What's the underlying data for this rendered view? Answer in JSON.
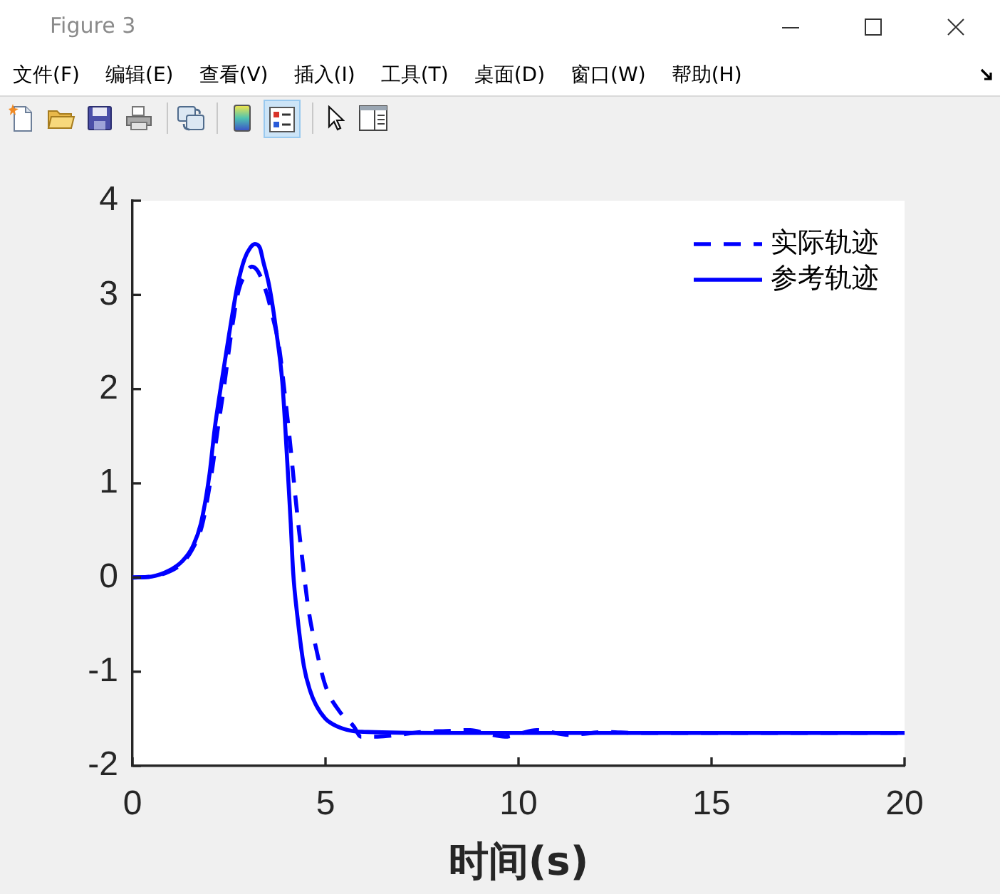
{
  "chart_data": {
    "type": "line",
    "xlabel": "时间(s)",
    "xlim": [
      0,
      20
    ],
    "xticks": [
      0,
      5,
      10,
      15,
      20
    ],
    "ylim": [
      -2,
      4
    ],
    "yticks": [
      -2,
      -1,
      0,
      1,
      2,
      3,
      4
    ],
    "legend": "top right",
    "annotations": [
      "Figure 3",
      "文件(F)",
      "编辑(E)",
      "查看(V)",
      "插入(I)",
      "工具(T)",
      "桌面(D)",
      "窗口(W)",
      "帮助(H)"
    ],
    "series": [
      {
        "name": "实际轨迹",
        "color": "#0000ff",
        "line_style": "dashed",
        "x": [
          0,
          0.5,
          0.93,
          1.28,
          1.55,
          1.8,
          2.04,
          2.2,
          2.39,
          2.56,
          2.75,
          2.9,
          3.09,
          3.25,
          3.45,
          3.62,
          3.8,
          3.95,
          4.07,
          4.23,
          4.35,
          4.56,
          4.75,
          5.0,
          5.36,
          5.73,
          5.92,
          6.35,
          6.9,
          7.5,
          8.13,
          8.75,
          9.2,
          9.65,
          10.0,
          10.47,
          11.3,
          12.3,
          13,
          15,
          17,
          20
        ],
        "values": [
          0,
          0.01,
          0.06,
          0.15,
          0.3,
          0.55,
          1.08,
          1.55,
          2.08,
          2.6,
          3.05,
          3.2,
          3.3,
          3.25,
          3.05,
          2.79,
          2.44,
          1.93,
          1.48,
          0.82,
          0.37,
          -0.34,
          -0.74,
          -1.15,
          -1.42,
          -1.58,
          -1.69,
          -1.69,
          -1.67,
          -1.64,
          -1.63,
          -1.62,
          -1.66,
          -1.69,
          -1.66,
          -1.62,
          -1.67,
          -1.64,
          -1.65,
          -1.65,
          -1.65,
          -1.65
        ]
      },
      {
        "name": "参考轨迹",
        "color": "#0000ff",
        "line_style": "solid",
        "x": [
          0,
          0.5,
          0.93,
          1.28,
          1.55,
          1.77,
          1.99,
          2.13,
          2.31,
          2.51,
          2.72,
          2.9,
          3.05,
          3.17,
          3.3,
          3.39,
          3.54,
          3.73,
          3.88,
          3.96,
          4.03,
          4.1,
          4.16,
          4.28,
          4.44,
          4.6,
          4.75,
          5.0,
          5.2,
          5.42,
          5.7,
          6.1,
          8,
          10,
          12,
          15,
          20
        ],
        "values": [
          0,
          0.01,
          0.07,
          0.17,
          0.32,
          0.57,
          1.08,
          1.58,
          2.08,
          2.6,
          3.1,
          3.38,
          3.5,
          3.54,
          3.5,
          3.35,
          3.1,
          2.6,
          2.08,
          1.58,
          1.08,
          0.57,
          0.07,
          -0.44,
          -0.94,
          -1.2,
          -1.35,
          -1.5,
          -1.56,
          -1.6,
          -1.63,
          -1.64,
          -1.65,
          -1.65,
          -1.65,
          -1.65,
          -1.65
        ]
      }
    ]
  }
}
